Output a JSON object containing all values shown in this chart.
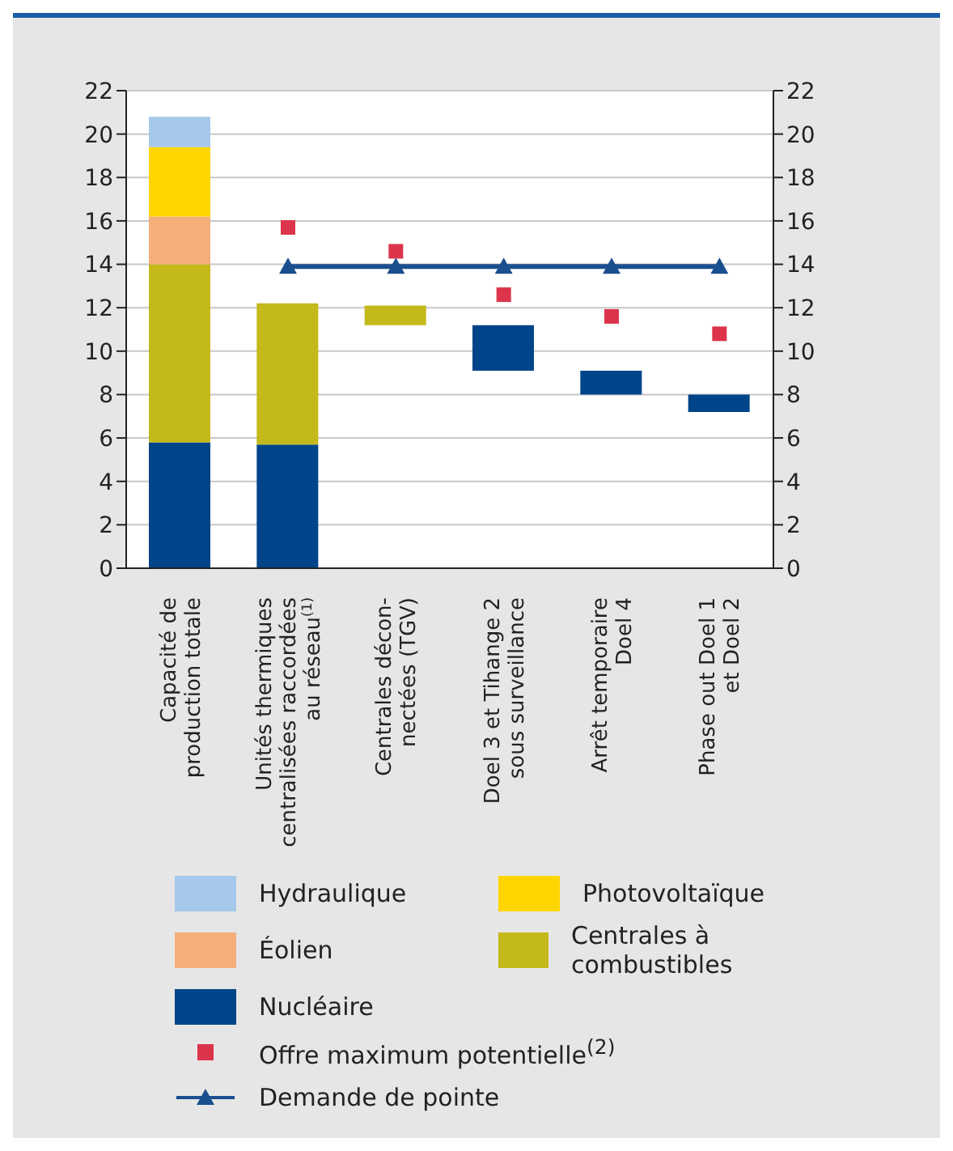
{
  "chart_data": {
    "type": "bar",
    "categories": [
      "Capacité de\nproduction totale",
      "Unités thermiques\ncentralisées raccordées\nau réseau$^{(1)}$",
      "Centrales décon-\nnectées (TGV)",
      "Doel 3 et Tihange 2\nsous surveillance",
      "Arrêt temporaire\nDoel 4",
      "Phase out Doel 1\net Doel 2"
    ],
    "series": [
      {
        "name": "Nucléaire",
        "color": "#004489",
        "values": [
          5.8,
          5.7,
          null,
          2.1,
          1.1,
          0.8
        ],
        "base": [
          0,
          0,
          null,
          9.1,
          8.0,
          7.2
        ]
      },
      {
        "name": "Centrales à combustibles",
        "color": "#c3b91a",
        "values": [
          8.2,
          6.5,
          0.9,
          null,
          null,
          null
        ],
        "base": [
          5.8,
          5.7,
          11.2,
          null,
          null,
          null
        ]
      },
      {
        "name": "Éolien",
        "color": "#f5ae7a",
        "values": [
          2.2,
          null,
          null,
          null,
          null,
          null
        ],
        "base": [
          14.0,
          null,
          null,
          null,
          null,
          null
        ]
      },
      {
        "name": "Photovoltaïque",
        "color": "#ffd500",
        "values": [
          3.2,
          null,
          null,
          null,
          null,
          null
        ],
        "base": [
          16.2,
          null,
          null,
          null,
          null,
          null
        ]
      },
      {
        "name": "Hydraulique",
        "color": "#a6c8ea",
        "values": [
          1.4,
          null,
          null,
          null,
          null,
          null
        ],
        "base": [
          19.4,
          null,
          null,
          null,
          null,
          null
        ]
      },
      {
        "name": "Offre maximum potentielle$^{(2)}$",
        "type": "scatter",
        "marker": "square",
        "color": "#dc344a",
        "values": [
          null,
          15.7,
          14.6,
          12.6,
          11.6,
          10.8
        ]
      },
      {
        "name": "Demande de pointe",
        "type": "line",
        "marker": "triangle",
        "color": "#1a4f8f",
        "values": [
          null,
          13.9,
          13.9,
          13.9,
          13.9,
          13.9
        ]
      }
    ],
    "ylim": [
      0,
      22
    ],
    "yticks": [
      0,
      2,
      4,
      6,
      8,
      10,
      12,
      14,
      16,
      18,
      20,
      22
    ],
    "y2lim": [
      0,
      22
    ],
    "y2ticks": [
      0,
      2,
      4,
      6,
      8,
      10,
      12,
      14,
      16,
      18,
      20,
      22
    ],
    "grid": "y",
    "legend": "bottom"
  }
}
